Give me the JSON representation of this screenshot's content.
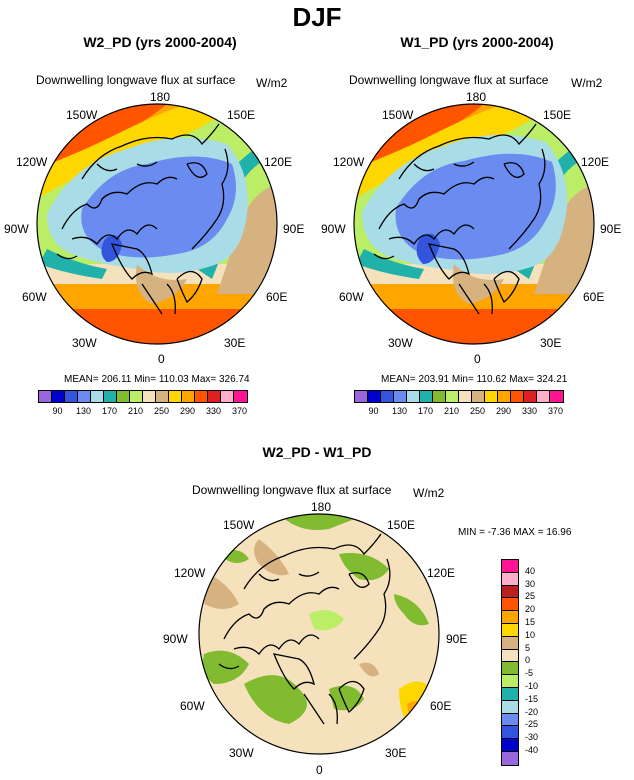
{
  "title": "DJF",
  "panels": {
    "w2": {
      "title": "W2_PD (yrs 2000-2004)",
      "variable": "Downwelling longwave flux at surface",
      "units": "W/m2",
      "stats": "MEAN= 206.11  Min= 110.03  Max= 326.74"
    },
    "w1": {
      "title": "W1_PD (yrs 2000-2004)",
      "variable": "Downwelling longwave flux at surface",
      "units": "W/m2",
      "stats": "MEAN= 203.91  Min= 110.62  Max= 324.21"
    },
    "diff": {
      "title": "W2_PD - W1_PD",
      "variable": "Downwelling longwave flux at surface",
      "units": "W/m2",
      "stats": "MIN =  -7.36 MAX =  16.96"
    }
  },
  "longitude_labels": {
    "l180": "180",
    "l150e": "150E",
    "l120e": "120E",
    "l90e": "90E",
    "l60e": "60E",
    "l30e": "30E",
    "l0": "0",
    "l30w": "30W",
    "l60w": "60W",
    "l90w": "90W",
    "l120w": "120W",
    "l150w": "150W"
  },
  "colorbar_main": {
    "labels": [
      "90",
      "130",
      "170",
      "210",
      "250",
      "290",
      "330",
      "370"
    ],
    "colors": [
      "#9966dd",
      "#0000cc",
      "#3355dd",
      "#6a8cf0",
      "#a8dde8",
      "#20b2aa",
      "#80bb30",
      "#bbee66",
      "#f5e2bd",
      "#d7b281",
      "#ffd700",
      "#ffa500",
      "#ff5500",
      "#dd2020",
      "#ffb0c8",
      "#ff1493"
    ]
  },
  "colorbar_diff": {
    "labels": [
      "40",
      "30",
      "25",
      "20",
      "15",
      "10",
      "5",
      "0",
      "-5",
      "-10",
      "-15",
      "-20",
      "-25",
      "-30",
      "-40"
    ],
    "colors": [
      "#ff1493",
      "#ffb0c8",
      "#bb2020",
      "#ff5500",
      "#ffa500",
      "#ffd700",
      "#d7b281",
      "#f5e2bd",
      "#80bb30",
      "#bbee66",
      "#20b2aa",
      "#a8dde8",
      "#6a8cf0",
      "#3355dd",
      "#0000cc",
      "#9966dd"
    ]
  }
}
